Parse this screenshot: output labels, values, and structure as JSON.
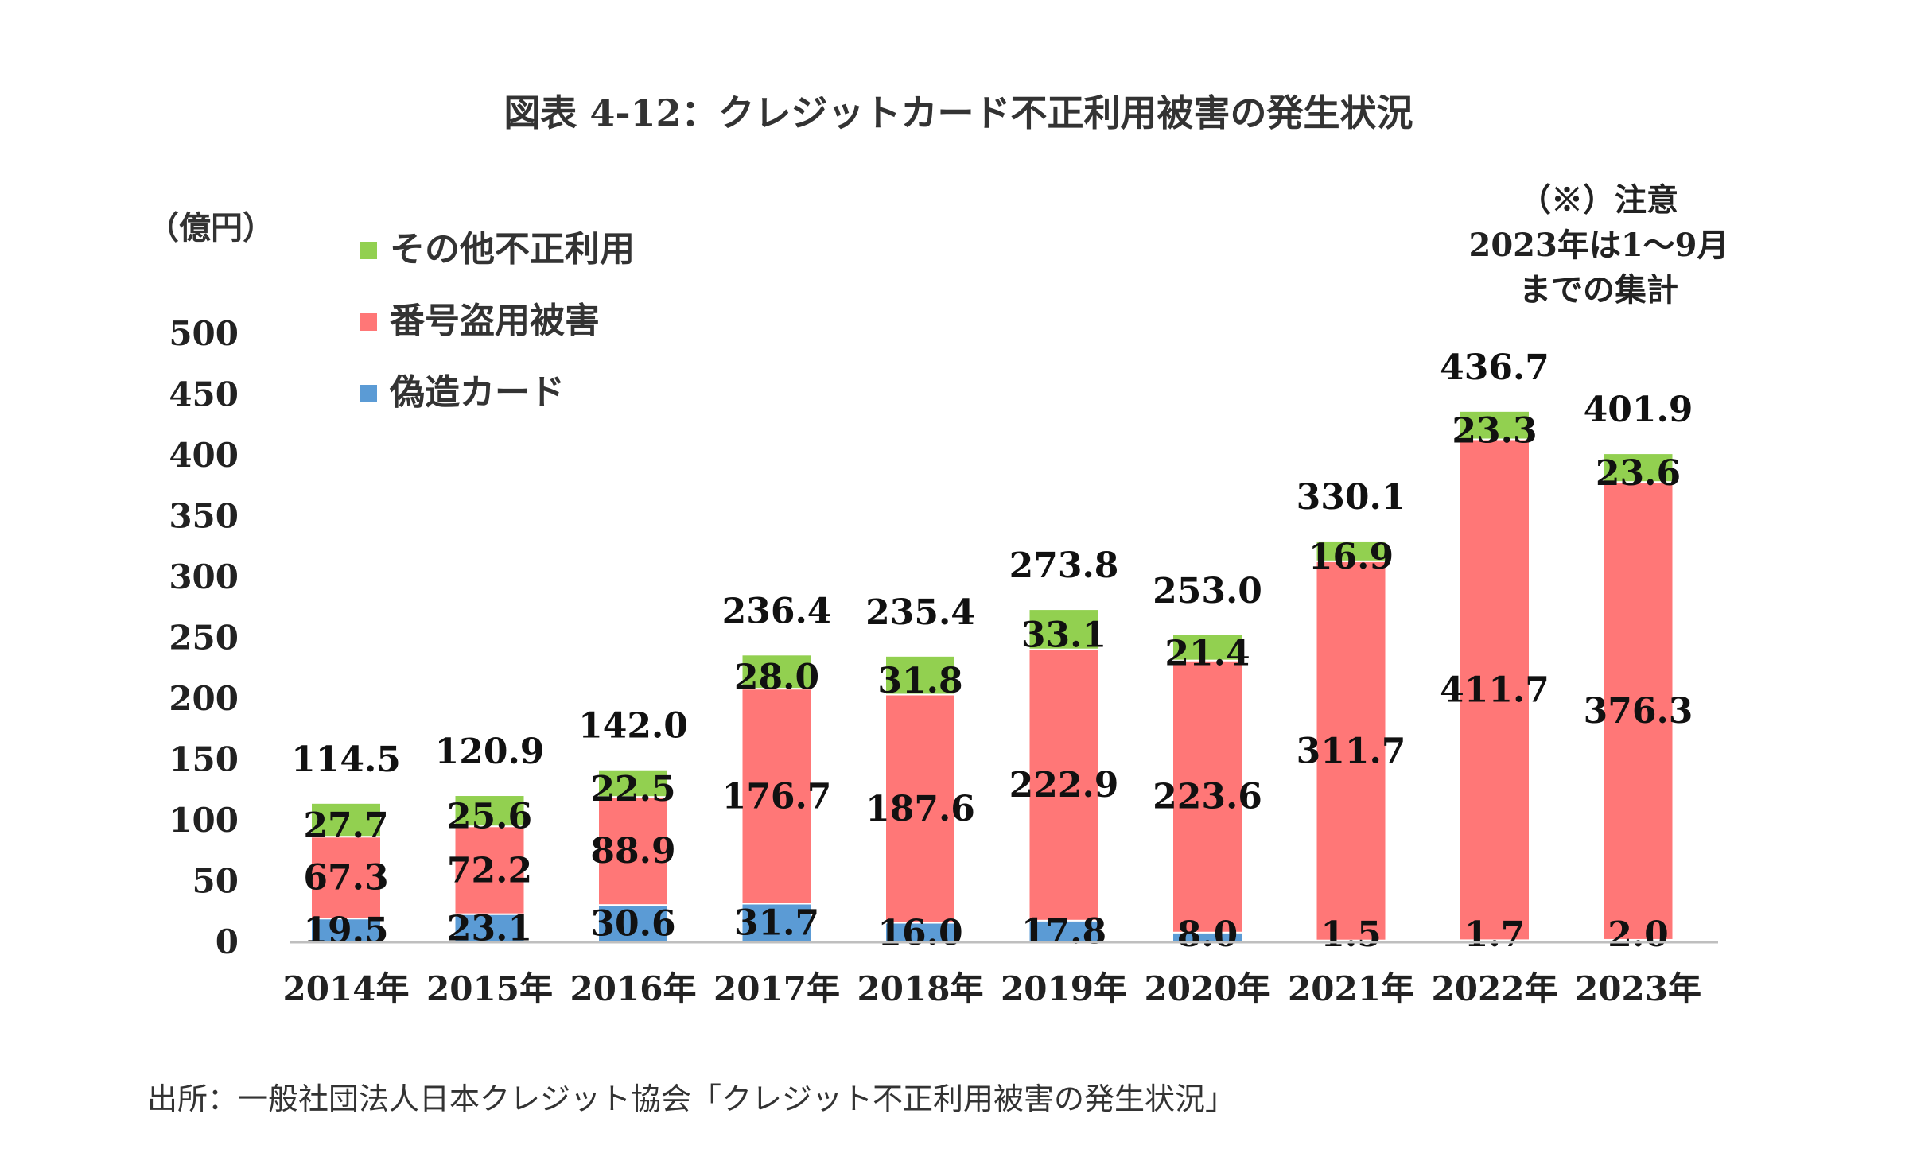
{
  "title": "図表 4-12：クレジットカード不正利用被害の発生状況",
  "unit_label": "（億円）",
  "note": {
    "line1": "（※）注意",
    "line2": "2023年は1～9月",
    "line3": "までの集計"
  },
  "source": "出所：一般社団法人日本クレジット協会「クレジット不正利用被害の発生状況」",
  "colors": {
    "forged": "#5b9bd5",
    "number_theft": "#ff7777",
    "other": "#92d050",
    "axis": "#bfbfbf"
  },
  "chart_data": {
    "type": "bar",
    "stacked": true,
    "categories": [
      "2014年",
      "2015年",
      "2016年",
      "2017年",
      "2018年",
      "2019年",
      "2020年",
      "2021年",
      "2022年",
      "2023年"
    ],
    "series": [
      {
        "name": "偽造カード",
        "values": [
          19.5,
          23.1,
          30.6,
          31.7,
          16.0,
          17.8,
          8.0,
          1.5,
          1.7,
          2.0
        ]
      },
      {
        "name": "番号盗用被害",
        "values": [
          67.3,
          72.2,
          88.9,
          176.7,
          187.6,
          222.9,
          223.6,
          311.7,
          411.7,
          376.3
        ]
      },
      {
        "name": "その他不正利用",
        "values": [
          27.7,
          25.6,
          22.5,
          28.0,
          31.8,
          33.1,
          21.4,
          16.9,
          23.3,
          23.6
        ]
      }
    ],
    "totals": [
      "114.5",
      "120.9",
      "142.0",
      "236.4",
      "235.4",
      "273.8",
      "253.0",
      "330.1",
      "436.7",
      "401.9"
    ],
    "segment_labels": [
      [
        "19.5",
        "23.1",
        "30.6",
        "31.7",
        "16.0",
        "17.8",
        "8.0",
        "1.5",
        "1.7",
        "2.0"
      ],
      [
        "67.3",
        "72.2",
        "88.9",
        "176.7",
        "187.6",
        "222.9",
        "223.6",
        "311.7",
        "411.7",
        "376.3"
      ],
      [
        "27.7",
        "25.6",
        "22.5",
        "28.0",
        "31.8",
        "33.1",
        "21.4",
        "16.9",
        "23.3",
        "23.6"
      ]
    ],
    "y_ticks": [
      "0",
      "50",
      "100",
      "150",
      "200",
      "250",
      "300",
      "350",
      "400",
      "450",
      "500"
    ],
    "ylim": [
      0,
      500
    ],
    "grid": false,
    "legend_position": "top-left",
    "legend_order": [
      "その他不正利用",
      "番号盗用被害",
      "偽造カード"
    ]
  }
}
